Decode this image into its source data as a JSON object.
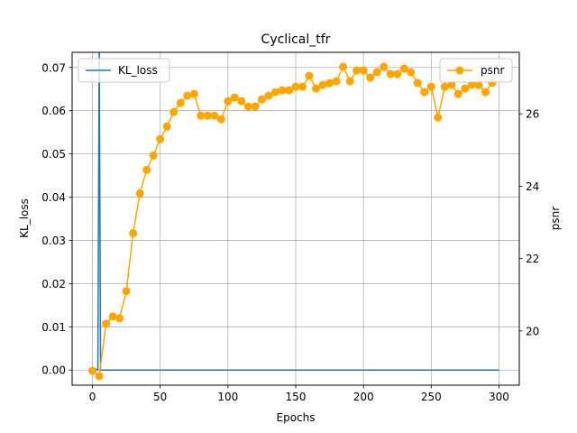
{
  "chart_data": {
    "type": "line",
    "title": "Cyclical_tfr",
    "xlabel": "Epochs",
    "ylabel_left": "KL_loss",
    "ylabel_right": "psnr",
    "xlim": [
      -15,
      315
    ],
    "ylim_left": [
      -0.0035,
      0.0735
    ],
    "ylim_right": [
      18.5,
      27.7
    ],
    "x_ticks": [
      0,
      50,
      100,
      150,
      200,
      250,
      300
    ],
    "y_ticks_left": [
      0.0,
      0.01,
      0.02,
      0.03,
      0.04,
      0.05,
      0.06,
      0.07
    ],
    "y_ticks_left_labels": [
      "0.00",
      "0.01",
      "0.02",
      "0.03",
      "0.04",
      "0.05",
      "0.06",
      "0.07"
    ],
    "y_ticks_right": [
      20,
      22,
      24,
      26
    ],
    "y_ticks_right_labels": [
      "20",
      "22",
      "24",
      "26"
    ],
    "grid": true,
    "series": [
      {
        "name": "KL_loss",
        "axis": "left",
        "color": "#1f77b4",
        "marker": "none",
        "legend_position": "upper-left",
        "x": [
          0,
          2,
          4,
          5,
          6,
          8,
          10,
          50,
          100,
          150,
          200,
          250,
          300
        ],
        "values": [
          0.0,
          0.0003,
          0.0,
          0.075,
          0.0,
          0.0,
          0.0,
          0.0,
          0.0,
          0.0,
          0.0,
          0.0,
          0.0
        ]
      },
      {
        "name": "psnr",
        "axis": "right",
        "color": "#ffa500",
        "marker": "circle",
        "legend_position": "upper-right",
        "x": [
          0,
          5,
          10,
          15,
          20,
          25,
          30,
          35,
          40,
          45,
          50,
          55,
          60,
          65,
          70,
          75,
          80,
          85,
          90,
          95,
          100,
          105,
          110,
          115,
          120,
          125,
          130,
          135,
          140,
          145,
          150,
          155,
          160,
          165,
          170,
          175,
          180,
          185,
          190,
          195,
          200,
          205,
          210,
          215,
          220,
          225,
          230,
          235,
          240,
          245,
          250,
          255,
          260,
          265,
          270,
          275,
          280,
          285,
          290,
          295
        ],
        "values": [
          18.9,
          18.75,
          20.2,
          20.4,
          20.35,
          21.1,
          22.7,
          23.8,
          24.45,
          24.85,
          25.3,
          25.65,
          26.05,
          26.3,
          26.5,
          26.55,
          25.95,
          25.95,
          25.95,
          25.85,
          26.35,
          26.45,
          26.35,
          26.2,
          26.2,
          26.4,
          26.5,
          26.6,
          26.65,
          26.65,
          26.75,
          26.75,
          27.05,
          26.7,
          26.8,
          26.85,
          26.9,
          27.3,
          26.9,
          27.2,
          27.2,
          27.0,
          27.15,
          27.3,
          27.1,
          27.1,
          27.25,
          27.15,
          26.85,
          26.6,
          26.75,
          25.9,
          26.75,
          26.8,
          26.55,
          26.7,
          26.8,
          26.8,
          26.6,
          26.85
        ]
      }
    ]
  }
}
